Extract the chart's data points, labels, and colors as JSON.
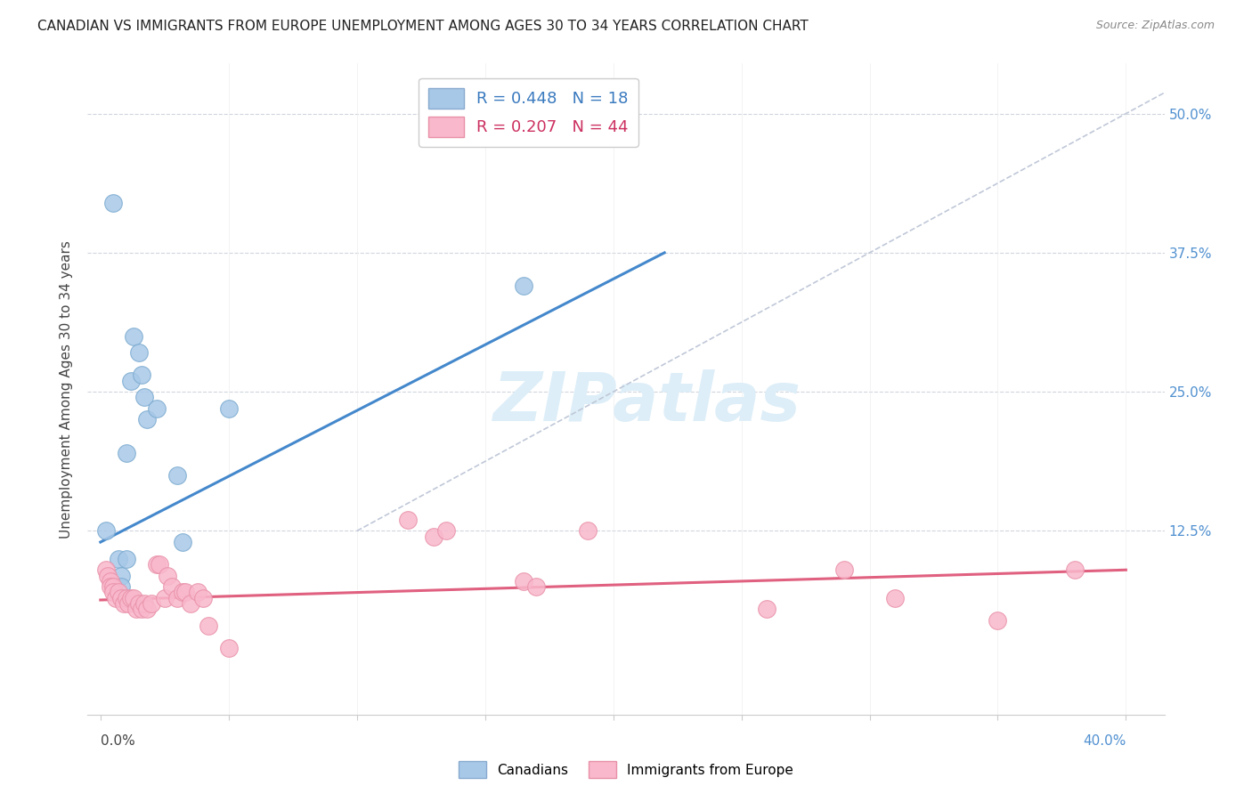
{
  "title": "CANADIAN VS IMMIGRANTS FROM EUROPE UNEMPLOYMENT AMONG AGES 30 TO 34 YEARS CORRELATION CHART",
  "source": "Source: ZipAtlas.com",
  "ylabel": "Unemployment Among Ages 30 to 34 years",
  "watermark": "ZIPatlas",
  "ytick_labels": [
    "12.5%",
    "25.0%",
    "37.5%",
    "50.0%"
  ],
  "ytick_values": [
    0.125,
    0.25,
    0.375,
    0.5
  ],
  "blue_scatter": [
    [
      0.005,
      0.42
    ],
    [
      0.007,
      0.1
    ],
    [
      0.008,
      0.085
    ],
    [
      0.008,
      0.075
    ],
    [
      0.01,
      0.1
    ],
    [
      0.01,
      0.195
    ],
    [
      0.012,
      0.26
    ],
    [
      0.013,
      0.3
    ],
    [
      0.015,
      0.285
    ],
    [
      0.016,
      0.265
    ],
    [
      0.017,
      0.245
    ],
    [
      0.018,
      0.225
    ],
    [
      0.022,
      0.235
    ],
    [
      0.03,
      0.175
    ],
    [
      0.032,
      0.115
    ],
    [
      0.05,
      0.235
    ],
    [
      0.165,
      0.345
    ],
    [
      0.002,
      0.125
    ]
  ],
  "pink_scatter": [
    [
      0.002,
      0.09
    ],
    [
      0.003,
      0.085
    ],
    [
      0.004,
      0.08
    ],
    [
      0.004,
      0.075
    ],
    [
      0.005,
      0.075
    ],
    [
      0.005,
      0.07
    ],
    [
      0.006,
      0.065
    ],
    [
      0.007,
      0.07
    ],
    [
      0.008,
      0.065
    ],
    [
      0.009,
      0.06
    ],
    [
      0.01,
      0.065
    ],
    [
      0.011,
      0.06
    ],
    [
      0.012,
      0.065
    ],
    [
      0.013,
      0.065
    ],
    [
      0.014,
      0.055
    ],
    [
      0.015,
      0.06
    ],
    [
      0.016,
      0.055
    ],
    [
      0.017,
      0.06
    ],
    [
      0.018,
      0.055
    ],
    [
      0.02,
      0.06
    ],
    [
      0.022,
      0.095
    ],
    [
      0.023,
      0.095
    ],
    [
      0.025,
      0.065
    ],
    [
      0.026,
      0.085
    ],
    [
      0.028,
      0.075
    ],
    [
      0.03,
      0.065
    ],
    [
      0.032,
      0.07
    ],
    [
      0.033,
      0.07
    ],
    [
      0.035,
      0.06
    ],
    [
      0.038,
      0.07
    ],
    [
      0.04,
      0.065
    ],
    [
      0.042,
      0.04
    ],
    [
      0.05,
      0.02
    ],
    [
      0.12,
      0.135
    ],
    [
      0.13,
      0.12
    ],
    [
      0.135,
      0.125
    ],
    [
      0.165,
      0.08
    ],
    [
      0.17,
      0.075
    ],
    [
      0.19,
      0.125
    ],
    [
      0.26,
      0.055
    ],
    [
      0.29,
      0.09
    ],
    [
      0.31,
      0.065
    ],
    [
      0.35,
      0.045
    ],
    [
      0.38,
      0.09
    ]
  ],
  "blue_line_x": [
    0.0,
    0.22
  ],
  "blue_line_y": [
    0.115,
    0.375
  ],
  "pink_line_x": [
    0.0,
    0.4
  ],
  "pink_line_y": [
    0.063,
    0.09
  ],
  "dashed_line_x": [
    0.1,
    0.42
  ],
  "dashed_line_y": [
    0.125,
    0.525
  ],
  "blue_color": "#a8c8e8",
  "blue_edge_color": "#7aaacf",
  "pink_color": "#f9b8cc",
  "pink_edge_color": "#e890a8",
  "blue_line_color": "#4488cc",
  "pink_line_color": "#e06080",
  "dashed_color": "#c0c8d8",
  "background_color": "#ffffff",
  "xlim": [
    -0.005,
    0.415
  ],
  "ylim": [
    -0.04,
    0.545
  ],
  "title_fontsize": 11,
  "axis_label_fontsize": 11,
  "tick_label_fontsize": 11
}
